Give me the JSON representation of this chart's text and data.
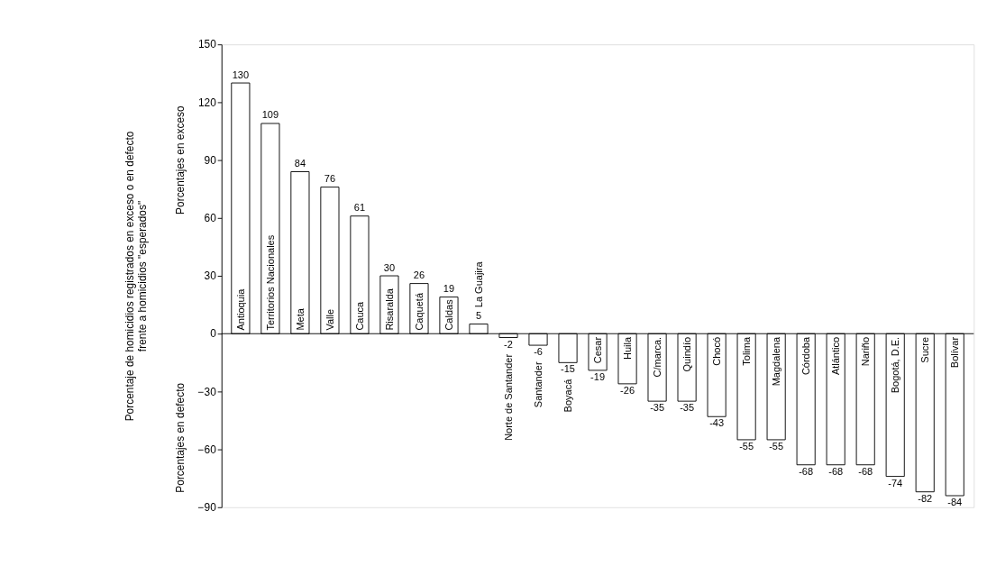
{
  "chart_data": {
    "type": "bar",
    "ylabel": "Porcentaje de homicidios registrados en exceso o en defecto\nfrente a homicidios \"esperados\"",
    "annotations": [
      "Porcentajes en exceso",
      "Porcentajes en defecto"
    ],
    "categories": [
      "Antioquia",
      "Territorios Nacionales",
      "Meta",
      "Valle",
      "Cauca",
      "Risaralda",
      "Caquetá",
      "Caldas",
      "La Guajira",
      "Norte de Santander",
      "Santander",
      "Boyacá",
      "Cesar",
      "Huila",
      "C/marca.",
      "Quindío",
      "Chocó",
      "Tolima",
      "Magdalena",
      "Córdoba",
      "Atlántico",
      "Nariño",
      "Bogotá, D.E.",
      "Sucre",
      "Bolívar"
    ],
    "values": [
      130,
      109,
      84,
      76,
      61,
      30,
      26,
      19,
      5,
      -2,
      -6,
      -15,
      -19,
      -26,
      -35,
      -35,
      -43,
      -55,
      -55,
      -68,
      -68,
      -68,
      -74,
      -82,
      -84
    ],
    "color": "#ffffff",
    "data_labels": true,
    "ylim": [
      -90,
      150
    ],
    "yticks": [
      -90,
      -60,
      -30,
      0,
      30,
      60,
      90,
      120,
      150
    ],
    "grid": false
  }
}
